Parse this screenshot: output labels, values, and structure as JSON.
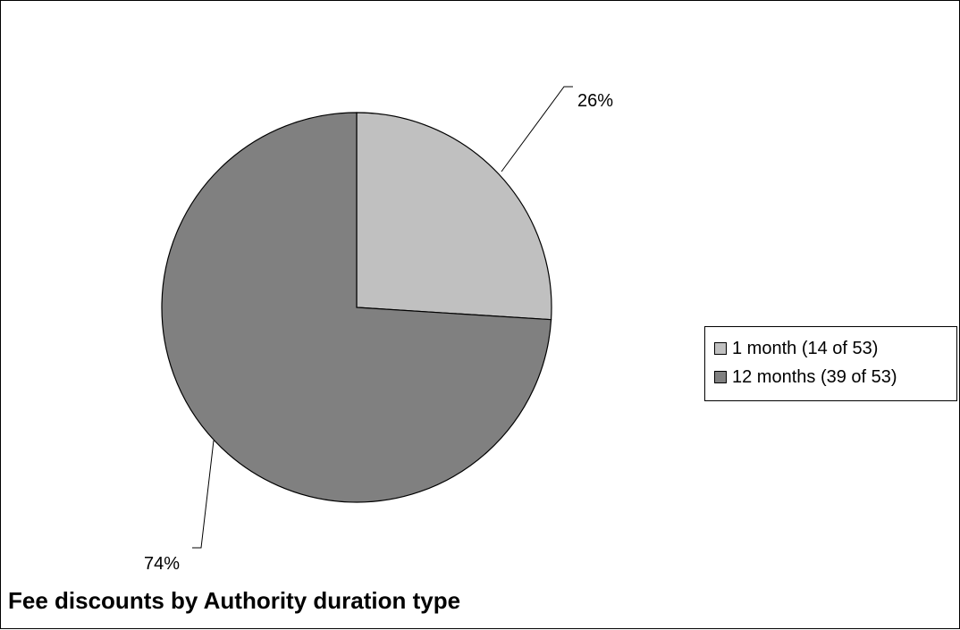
{
  "chart_data": {
    "type": "pie",
    "title": "Fee discounts by Authority duration type",
    "slices": [
      {
        "name": "1 month (14 of 53)",
        "count": 14,
        "value": 26,
        "label": "26%",
        "color": "#c0c0c0"
      },
      {
        "name": "12 months (39 of 53)",
        "count": 39,
        "value": 74,
        "label": "74%",
        "color": "#808080"
      }
    ],
    "total": 53,
    "legend_position": "right"
  }
}
